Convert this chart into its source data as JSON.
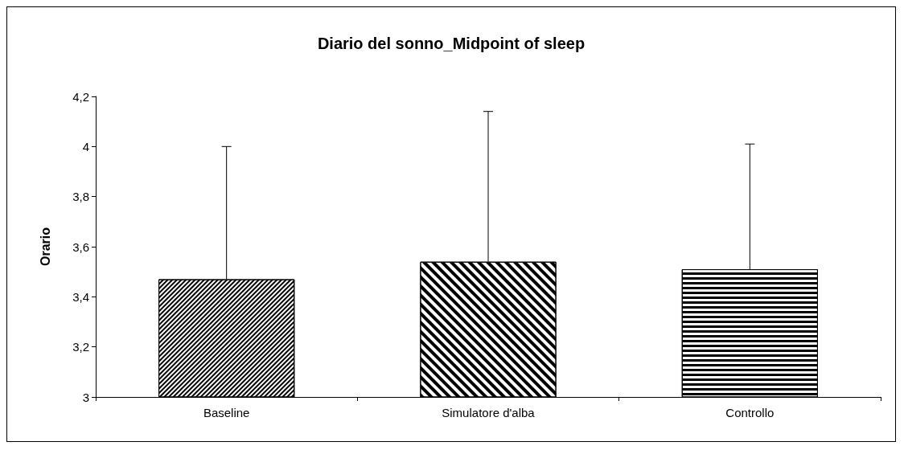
{
  "chart_data": {
    "type": "bar",
    "title": "Diario del sonno_Midpoint of sleep",
    "ylabel": "Orario",
    "categories": [
      "Baseline",
      "Simulatore d'alba",
      "Controllo"
    ],
    "values": [
      3.47,
      3.54,
      3.51
    ],
    "errors": [
      [
        3.47,
        4.0
      ],
      [
        3.54,
        4.14
      ],
      [
        3.51,
        4.01
      ]
    ],
    "color": "#ffffff",
    "ylim": [
      3,
      4.2
    ],
    "yticks": [
      {
        "value": 3,
        "label": "3"
      },
      {
        "value": 3.2,
        "label": "3,2"
      },
      {
        "value": 3.4,
        "label": "3,4"
      },
      {
        "value": 3.6,
        "label": "3,6"
      },
      {
        "value": 3.8,
        "label": "3,8"
      },
      {
        "value": 4,
        "label": "4"
      },
      {
        "value": 4.2,
        "label": "4,2"
      }
    ],
    "grid": false
  }
}
